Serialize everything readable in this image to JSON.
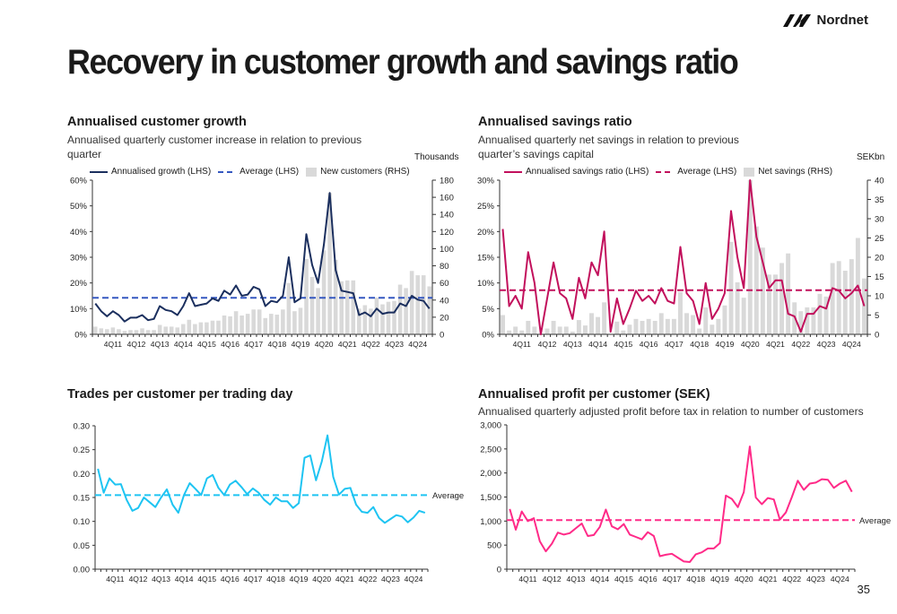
{
  "brand": {
    "logo_text": "Nordnet"
  },
  "page": {
    "title": "Recovery in customer growth and savings ratio",
    "page_number": "35"
  },
  "colors": {
    "navy": "#1b2f5e",
    "blue_dash": "#3558c0",
    "magenta": "#c2105c",
    "cyan": "#1ec4f2",
    "pink": "#ff2a88",
    "bar": "#d9d9d9"
  },
  "chart_data": [
    {
      "type": "bar+line",
      "title": "Annualised customer growth",
      "subtitle": "Annualised quarterly customer increase in relation to previous quarter",
      "right_unit": "Thousands",
      "legend": [
        "Annualised growth (LHS)",
        "Average (LHS)",
        "New customers (RHS)"
      ],
      "x_tick_labels": [
        "4Q11",
        "4Q12",
        "4Q13",
        "4Q14",
        "4Q15",
        "4Q16",
        "4Q17",
        "4Q18",
        "4Q19",
        "4Q20",
        "4Q21",
        "4Q22",
        "4Q23",
        "4Q24"
      ],
      "y_left": {
        "ticks": [
          "0%",
          "10%",
          "20%",
          "30%",
          "40%",
          "50%",
          "60%"
        ],
        "range": [
          0,
          60
        ]
      },
      "y_right": {
        "ticks": [
          "0",
          "20",
          "40",
          "60",
          "80",
          "100",
          "120",
          "140",
          "160",
          "180"
        ],
        "range": [
          0,
          180
        ]
      },
      "line_values": [
        12,
        9,
        7,
        9,
        7.5,
        5,
        6.5,
        6.5,
        7.5,
        5.5,
        6,
        11,
        9.5,
        9,
        7.5,
        11,
        16,
        11,
        11.5,
        12,
        14,
        13,
        17,
        15.5,
        19,
        15,
        15.5,
        18.5,
        17.5,
        11,
        13,
        12.5,
        15,
        30,
        12.5,
        14,
        39,
        27,
        20,
        35,
        55,
        25,
        17,
        16.5,
        16,
        7.5,
        8.5,
        7,
        10,
        8,
        8.5,
        8.5,
        12,
        11,
        15,
        13.5,
        13,
        10
      ],
      "average": 14.2,
      "bar_values": [
        9,
        7,
        6,
        8,
        6,
        4,
        5,
        5,
        7,
        5,
        5,
        11,
        9,
        9,
        8,
        12,
        17,
        12,
        14,
        14,
        16,
        16,
        22,
        21,
        27,
        22,
        24,
        29,
        29,
        19,
        24,
        23,
        29,
        60,
        27,
        31,
        88,
        67,
        54,
        98,
        165,
        87,
        62,
        63,
        63,
        30,
        34,
        30,
        43,
        35,
        38,
        39,
        58,
        54,
        74,
        69,
        69,
        56
      ]
    },
    {
      "type": "bar+line",
      "title": "Annualised savings ratio",
      "subtitle": "Annualised quarterly net savings in relation to previous quarter’s savings capital",
      "right_unit": "SEKbn",
      "legend": [
        "Annualised savings ratio (LHS)",
        "Average (LHS)",
        "Net savings (RHS)"
      ],
      "x_tick_labels": [
        "4Q11",
        "4Q12",
        "4Q13",
        "4Q14",
        "4Q15",
        "4Q16",
        "4Q17",
        "4Q18",
        "4Q19",
        "4Q20",
        "4Q21",
        "4Q22",
        "4Q23",
        "4Q24"
      ],
      "y_left": {
        "ticks": [
          "0%",
          "5%",
          "10%",
          "15%",
          "20%",
          "25%",
          "30%"
        ],
        "range": [
          0,
          30
        ]
      },
      "y_right": {
        "ticks": [
          "0",
          "5",
          "10",
          "15",
          "20",
          "25",
          "30",
          "35",
          "40"
        ],
        "range": [
          0,
          40
        ]
      },
      "line_values": [
        20.5,
        5.5,
        7.5,
        5,
        16,
        10,
        0,
        7,
        14,
        8,
        7,
        3,
        11,
        7,
        14,
        11.5,
        20,
        0.5,
        7,
        2,
        5,
        8.5,
        6.5,
        7.5,
        6,
        9,
        6.5,
        6,
        17,
        8,
        6.5,
        2,
        10,
        3,
        5,
        8,
        24,
        15,
        9,
        30,
        19,
        14,
        9,
        10.5,
        10.5,
        4,
        3.5,
        0.5,
        4,
        4,
        5.5,
        5,
        9,
        8.5,
        7,
        8,
        9.5,
        5.5
      ],
      "average": 8.6,
      "bar_values": [
        5,
        1,
        2,
        1,
        3.5,
        2,
        0,
        1.5,
        3.5,
        2,
        2,
        0.7,
        3.7,
        2.3,
        5.5,
        4.5,
        8.3,
        0,
        3.3,
        1,
        2.5,
        4,
        3.5,
        4,
        3.5,
        5.5,
        4,
        4,
        11,
        5.5,
        5,
        1.5,
        7,
        2.5,
        4,
        7.5,
        24,
        13.5,
        9.5,
        40,
        28,
        22.5,
        15.5,
        15.5,
        18.5,
        21,
        8.3,
        6,
        7,
        7,
        10.5,
        9.8,
        18.5,
        19,
        16.5,
        19.5,
        25,
        14.5
      ]
    },
    {
      "type": "line",
      "title": "Trades per customer per trading day",
      "subtitle": "",
      "average_label": "Average",
      "x_tick_labels": [
        "4Q11",
        "4Q12",
        "4Q13",
        "4Q14",
        "4Q15",
        "4Q16",
        "4Q17",
        "4Q18",
        "4Q19",
        "4Q20",
        "4Q21",
        "4Q22",
        "4Q23",
        "4Q24"
      ],
      "y_left": {
        "ticks": [
          "0.00",
          "0.05",
          "0.10",
          "0.15",
          "0.20",
          "0.25",
          "0.30"
        ],
        "range": [
          0,
          0.3
        ]
      },
      "line_values": [
        0.21,
        0.16,
        0.19,
        0.177,
        0.178,
        0.145,
        0.122,
        0.128,
        0.15,
        0.14,
        0.13,
        0.15,
        0.167,
        0.135,
        0.118,
        0.155,
        0.18,
        0.168,
        0.155,
        0.19,
        0.197,
        0.17,
        0.155,
        0.177,
        0.185,
        0.172,
        0.157,
        0.169,
        0.16,
        0.145,
        0.135,
        0.15,
        0.142,
        0.142,
        0.128,
        0.138,
        0.233,
        0.238,
        0.186,
        0.225,
        0.28,
        0.193,
        0.156,
        0.168,
        0.17,
        0.135,
        0.12,
        0.118,
        0.13,
        0.107,
        0.097,
        0.105,
        0.113,
        0.11,
        0.098,
        0.108,
        0.122,
        0.118
      ],
      "average": 0.155
    },
    {
      "type": "line",
      "title": "Annualised profit per customer (SEK)",
      "subtitle": "Annualised quarterly adjusted profit before tax in relation to number of customers",
      "average_label": "Average",
      "x_tick_labels": [
        "4Q11",
        "4Q12",
        "4Q13",
        "4Q14",
        "4Q15",
        "4Q16",
        "4Q17",
        "4Q18",
        "4Q19",
        "4Q20",
        "4Q21",
        "4Q22",
        "4Q23",
        "4Q24"
      ],
      "y_left": {
        "ticks": [
          "0",
          "500",
          "1,000",
          "1,500",
          "2,000",
          "2,500",
          "3,000"
        ],
        "range": [
          0,
          3000
        ]
      },
      "line_values": [
        1250,
        820,
        1200,
        1000,
        1060,
        580,
        370,
        530,
        760,
        720,
        750,
        850,
        950,
        690,
        710,
        880,
        1240,
        890,
        830,
        940,
        720,
        670,
        620,
        770,
        690,
        270,
        300,
        320,
        240,
        160,
        150,
        310,
        350,
        430,
        430,
        540,
        1530,
        1460,
        1290,
        1600,
        2550,
        1490,
        1350,
        1480,
        1450,
        1030,
        1180,
        1500,
        1840,
        1650,
        1780,
        1800,
        1870,
        1860,
        1690,
        1780,
        1840,
        1610
      ],
      "average": 1020
    }
  ]
}
